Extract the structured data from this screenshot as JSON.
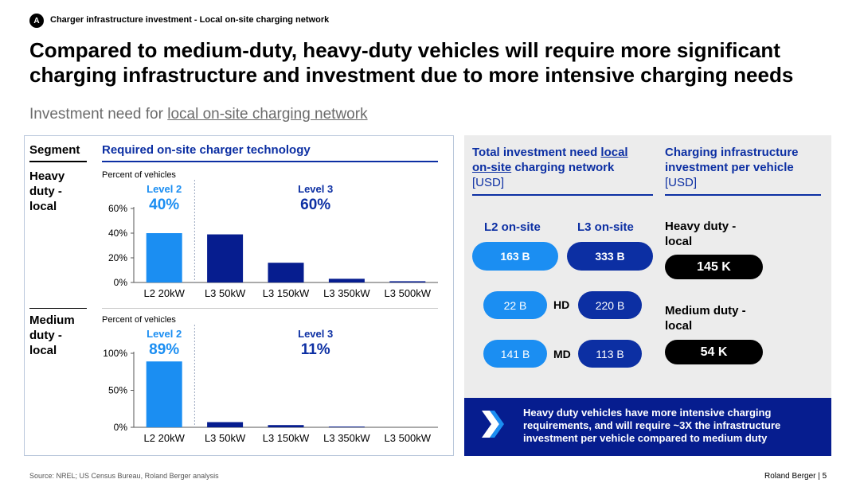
{
  "header": {
    "badge": "A",
    "kicker": "Charger infrastructure investment - Local on-site charging network",
    "title": "Compared to medium-duty, heavy-duty vehicles will require more significant charging infrastructure and investment due to more intensive charging needs",
    "subtitle_prefix": "Investment need for ",
    "subtitle_underlined": "local on-site charging network"
  },
  "left_panel": {
    "segment_header": "Segment",
    "tech_header": "Required on-site charger technology",
    "segments": [
      {
        "label_lines": [
          "Heavy",
          "duty -",
          "local"
        ]
      },
      {
        "label_lines": [
          "Medium",
          "duty -",
          "local"
        ]
      }
    ]
  },
  "chart_data": [
    {
      "type": "bar",
      "segment": "Heavy duty - local",
      "ylabel": "Percent of vehicles",
      "categories": [
        "L2 20kW",
        "L3 50kW",
        "L3 150kW",
        "L3 350kW",
        "L3 500kW"
      ],
      "values": [
        40,
        39,
        16,
        3,
        1
      ],
      "ylim": [
        0,
        60
      ],
      "yticks": [
        0,
        20,
        40,
        60
      ],
      "ytick_labels": [
        "0%",
        "20%",
        "40%",
        "60%"
      ],
      "bar_colors": [
        "#1b8ef2",
        "#061d8f",
        "#061d8f",
        "#061d8f",
        "#061d8f"
      ],
      "groups": [
        {
          "name": "Level 2",
          "share": "40%",
          "color": "#1b8ef2"
        },
        {
          "name": "Level 3",
          "share": "60%",
          "color": "#0c2fa3"
        }
      ]
    },
    {
      "type": "bar",
      "segment": "Medium duty - local",
      "ylabel": "Percent of vehicles",
      "categories": [
        "L2 20kW",
        "L3 50kW",
        "L3 150kW",
        "L3 350kW",
        "L3 500kW"
      ],
      "values": [
        89,
        7,
        3,
        1,
        0
      ],
      "ylim": [
        0,
        100
      ],
      "yticks": [
        0,
        50,
        100
      ],
      "ytick_labels": [
        "0%",
        "50%",
        "100%"
      ],
      "bar_colors": [
        "#1b8ef2",
        "#061d8f",
        "#061d8f",
        "#061d8f",
        "#061d8f"
      ],
      "groups": [
        {
          "name": "Level 2",
          "share": "89%",
          "color": "#1b8ef2"
        },
        {
          "name": "Level 3",
          "share": "11%",
          "color": "#0c2fa3"
        }
      ]
    }
  ],
  "right_panel": {
    "total_head_1": "Total investment need ",
    "total_head_ul1": "local",
    "total_head_ul2": "on-site",
    "total_head_2": " charging network",
    "total_unit": "[USD]",
    "per_vehicle_head": "Charging infrastructure investment per vehicle",
    "per_vehicle_unit": "[USD]",
    "l2_head": "L2 on-site",
    "l3_head": "L3 on-site",
    "l2_total": "163 B",
    "l3_total": "333 B",
    "hd_tag": "HD",
    "md_tag": "MD",
    "hd_l2": "22 B",
    "hd_l3": "220 B",
    "md_l2": "141 B",
    "md_l3": "113 B",
    "hd_seg_lines": [
      "Heavy duty -",
      "local"
    ],
    "md_seg_lines": [
      "Medium duty -",
      "local"
    ],
    "hd_value": "145 K",
    "md_value": "54 K"
  },
  "callout": {
    "text": "Heavy duty vehicles have more intensive charging requirements, and will require ~3X the infrastructure investment per vehicle compared to medium duty"
  },
  "footer": {
    "source": "Source: NREL; US Census Bureau, Roland Berger analysis",
    "brand": "Roland Berger  |  5"
  },
  "colors": {
    "accent": "#0c2fa3",
    "light_blue": "#1b8ef2",
    "navy": "#061d8f"
  }
}
